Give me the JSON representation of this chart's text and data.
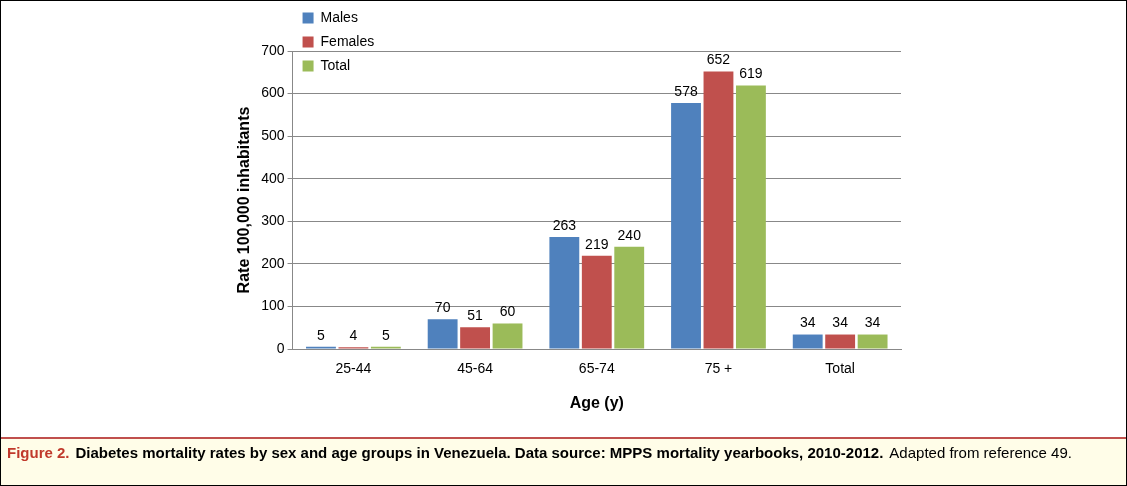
{
  "chart_data": {
    "type": "bar",
    "categories": [
      "25-44",
      "45-64",
      "65-74",
      "75 +",
      "Total"
    ],
    "series": [
      {
        "name": "Males",
        "color": "#4f81bd",
        "values": [
          5,
          70,
          263,
          578,
          34
        ]
      },
      {
        "name": "Females",
        "color": "#c0504d",
        "values": [
          4,
          51,
          219,
          652,
          34
        ]
      },
      {
        "name": "Total",
        "color": "#9bbb59",
        "values": [
          5,
          60,
          240,
          619,
          34
        ]
      }
    ],
    "xlabel": "Age (y)",
    "ylabel": "Rate 100,000 inhabitants",
    "ylim": [
      0,
      700
    ],
    "yticks": [
      0,
      100,
      200,
      300,
      400,
      500,
      600,
      700
    ],
    "grid": "y",
    "legend": "top left",
    "data_labels": true,
    "annotations": [
      "Figure 2.",
      "Diabetes mortality rates by sex and age groups in Venezuela. Data source: MPPS mortality yearbooks, 2010-2012.",
      "Adapted from reference 49."
    ]
  }
}
